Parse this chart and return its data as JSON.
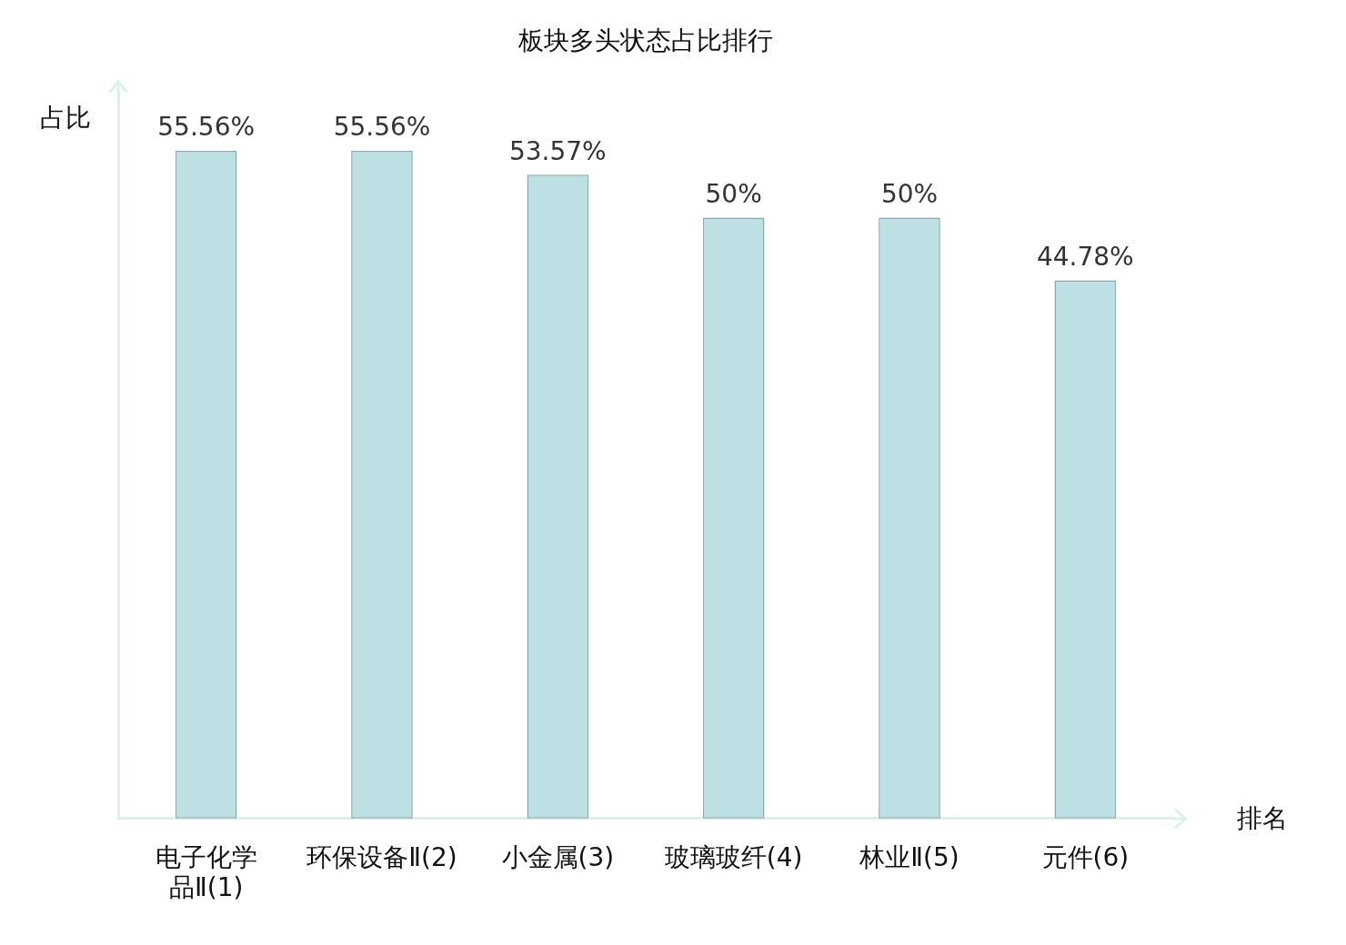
{
  "chart_data": {
    "type": "bar",
    "title": "板块多头状态占比排行",
    "xlabel": "排名",
    "ylabel": "占比",
    "categories": [
      "电子化学品Ⅱ(1)",
      "环保设备Ⅱ(2)",
      "小金属(3)",
      "玻璃玻纤(4)",
      "林业Ⅱ(5)",
      "元件(6)"
    ],
    "values": [
      55.56,
      55.56,
      53.57,
      50,
      50,
      44.78
    ],
    "value_labels": [
      "55.56%",
      "55.56%",
      "53.57%",
      "50%",
      "50%",
      "44.78%"
    ],
    "color": "#bce0e3",
    "tick_labels": "x",
    "grid": false,
    "legend": false
  }
}
